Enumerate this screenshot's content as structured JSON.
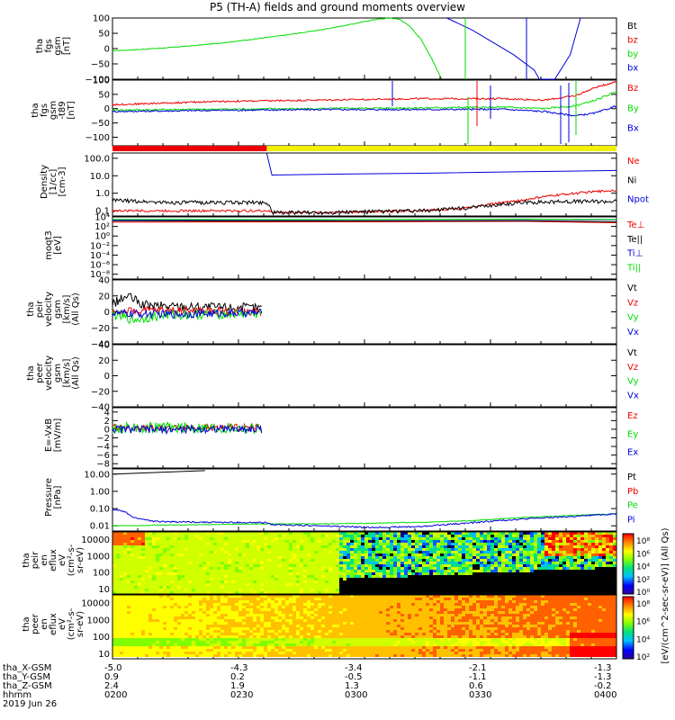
{
  "title": "P5 (TH-A) fields and ground moments overview",
  "colors": {
    "black": "#000000",
    "red": "#ee0000",
    "green": "#00dd00",
    "blue": "#0000dd",
    "yellow": "#f0f000"
  },
  "chart_data": [
    {
      "type": "line",
      "ylabel": [
        "tha",
        "fgs",
        "gsm",
        "[nT]"
      ],
      "ylim": [
        -100,
        100
      ],
      "yticks": [
        "100",
        "50",
        "0",
        "−50",
        "−100"
      ],
      "series": [
        {
          "name": "Bt",
          "color": "black",
          "x": [],
          "y": []
        },
        {
          "name": "bz",
          "color": "red",
          "x": [],
          "y": []
        },
        {
          "name": "by",
          "color": "green",
          "x": [
            -5.0,
            -4.8,
            -4.5,
            -4.2,
            -3.9,
            -3.6,
            -3.3,
            -3.0,
            -2.7,
            -2.45,
            -2.3,
            -2.2,
            -2.1,
            -2.0,
            -1.9,
            -1.8
          ],
          "y": [
            -7,
            -4,
            2,
            10,
            20,
            32,
            45,
            60,
            78,
            95,
            100,
            95,
            70,
            30,
            -30,
            -100
          ]
        },
        {
          "name": "bx",
          "color": "blue",
          "x": [
            -1.75,
            -1.5,
            -1.3,
            -1.1,
            -0.9,
            -0.85,
            -0.7,
            -0.55,
            -0.45
          ],
          "y": [
            100,
            60,
            20,
            -20,
            -70,
            -100,
            -100,
            -20,
            100
          ]
        }
      ]
    },
    {
      "type": "line",
      "ylabel": [
        "tha",
        "fgs",
        "gsm",
        "-t89",
        "[nT]"
      ],
      "ylim": [
        -130,
        100
      ],
      "yticks": [
        "100",
        "50",
        "0",
        "−50",
        "−100"
      ],
      "series": [
        {
          "name": "Bz",
          "color": "red",
          "x": [
            -5.0,
            -4.0,
            -3.0,
            -2.0,
            -1.2,
            -0.8,
            -0.5,
            -0.3,
            -0.1
          ],
          "y": [
            14,
            25,
            30,
            35,
            35,
            30,
            45,
            75,
            95
          ]
        },
        {
          "name": "By",
          "color": "green",
          "x": [
            -5.0,
            -4.0,
            -3.0,
            -2.0,
            -1.2,
            -0.8,
            -0.5,
            -0.3,
            -0.1
          ],
          "y": [
            -5,
            -2,
            0,
            3,
            5,
            0,
            10,
            30,
            60
          ]
        },
        {
          "name": "Bx",
          "color": "blue",
          "x": [
            -5.0,
            -4.0,
            -3.0,
            -2.0,
            -1.2,
            -0.8,
            -0.5,
            -0.3,
            -0.1
          ],
          "y": [
            -10,
            -6,
            -3,
            -3,
            -2,
            -10,
            -25,
            -15,
            10
          ]
        }
      ]
    },
    {
      "type": "line",
      "ylabel": [
        "Density",
        "[1/cc]",
        "[cm-3]"
      ],
      "ylim": [
        0.05,
        200
      ],
      "scale": "log",
      "yticks": [
        "100.0",
        "10.0",
        "1.0",
        "0.1"
      ],
      "series": [
        {
          "name": "Ne",
          "color": "red",
          "x": [
            -5.0,
            -4.0,
            -3.5,
            -3.45,
            -3.0,
            -2.0,
            -1.5,
            -1.0,
            -0.5,
            -0.1
          ],
          "y": [
            0.1,
            0.1,
            0.1,
            0.08,
            0.08,
            0.1,
            0.15,
            0.4,
            1.0,
            1.5
          ]
        },
        {
          "name": "Ni",
          "color": "black",
          "x": [
            -5.0,
            -4.5,
            -3.5,
            -3.45,
            -3.0,
            -2.0,
            -1.5,
            -1.0,
            -0.5,
            -0.1
          ],
          "y": [
            0.4,
            0.3,
            0.3,
            0.08,
            0.08,
            0.1,
            0.15,
            0.3,
            0.35,
            0.35
          ]
        },
        {
          "name": "Npot",
          "color": "blue",
          "x": [
            -3.5,
            -3.45,
            -3.0,
            -2.0,
            -1.0,
            -0.1
          ],
          "y": [
            190,
            11,
            12,
            14,
            17,
            20
          ]
        }
      ]
    },
    {
      "type": "line",
      "ylabel": [
        "moqt3",
        "[eV]"
      ],
      "ylim": [
        1e-09,
        10000.0
      ],
      "scale": "log",
      "yticks": [
        "10⁴",
        "10²",
        "10⁰",
        "10⁻²",
        "10⁻⁴",
        "10⁻⁶",
        "10⁻⁸"
      ],
      "series": [
        {
          "name": "Te⊥",
          "color": "red",
          "x": [
            -5.0,
            -3.0,
            -1.0,
            -0.1
          ],
          "y": [
            800,
            900,
            1200,
            600
          ]
        },
        {
          "name": "Te||",
          "color": "black",
          "x": [
            -5.0,
            -3.0,
            -1.0,
            -0.1
          ],
          "y": [
            1500,
            1400,
            1600,
            900
          ]
        },
        {
          "name": "Ti⊥",
          "color": "blue",
          "x": [
            -5.0,
            -3.0,
            -1.0,
            -0.1
          ],
          "y": [
            2000,
            2500,
            3000,
            2500
          ]
        },
        {
          "name": "Ti||",
          "color": "green",
          "x": [
            -5.0,
            -3.0,
            -1.0,
            -0.1
          ],
          "y": [
            3000,
            2800,
            3500,
            2800
          ]
        }
      ]
    },
    {
      "type": "line",
      "ylabel": [
        "tha",
        "peir",
        "velocity",
        "gsm",
        "[km/s]",
        "(All Qs)"
      ],
      "ylim": [
        -40,
        40
      ],
      "yticks": [
        "40",
        "20",
        "0",
        "−20",
        "−40"
      ],
      "series": [
        {
          "name": "Vt",
          "color": "black",
          "x": [
            -5.0,
            -4.85,
            -4.7,
            -4.0,
            -3.55
          ],
          "y": [
            10,
            20,
            8,
            6,
            5
          ]
        },
        {
          "name": "Vz",
          "color": "red",
          "x": [
            -5.0,
            -4.5,
            -4.0,
            -3.55
          ],
          "y": [
            0,
            2,
            1,
            0
          ]
        },
        {
          "name": "Vy",
          "color": "green",
          "x": [
            -5.0,
            -4.8,
            -4.5,
            -4.0,
            -3.55
          ],
          "y": [
            -3,
            -10,
            -4,
            -3,
            -2
          ]
        },
        {
          "name": "Vx",
          "color": "blue",
          "x": [
            -5.0,
            -4.5,
            -4.0,
            -3.55
          ],
          "y": [
            -2,
            -3,
            -2,
            -1
          ]
        }
      ]
    },
    {
      "type": "line",
      "ylabel": [
        "tha",
        "peer",
        "velocity",
        "gsm",
        "[km/s]",
        "(All Qs)"
      ],
      "ylim": [
        -40,
        40
      ],
      "yticks": [
        "40",
        "20",
        "0",
        "−20",
        "−40"
      ],
      "series": [
        {
          "name": "Vt",
          "color": "black",
          "x": [],
          "y": []
        },
        {
          "name": "Vz",
          "color": "red",
          "x": [],
          "y": []
        },
        {
          "name": "Vy",
          "color": "green",
          "x": [],
          "y": []
        },
        {
          "name": "Vx",
          "color": "blue",
          "x": [],
          "y": []
        }
      ]
    },
    {
      "type": "line",
      "ylabel": [
        "E=-VxB",
        "[mV/m]"
      ],
      "ylim": [
        -9,
        5
      ],
      "yticks": [
        "4",
        "2",
        "0",
        "−2",
        "−4",
        "−6",
        "−8"
      ],
      "series": [
        {
          "name": "Ez",
          "color": "red",
          "x": [
            -5.0,
            -4.5,
            -4.0,
            -3.55
          ],
          "y": [
            0.5,
            0.3,
            0.4,
            0.5
          ]
        },
        {
          "name": "Ey",
          "color": "green",
          "x": [
            -5.0,
            -4.5,
            -4.0,
            -3.55
          ],
          "y": [
            0.2,
            0.4,
            0.3,
            0.2
          ]
        },
        {
          "name": "Ex",
          "color": "blue",
          "x": [
            -5.0,
            -4.5,
            -4.0,
            -3.55
          ],
          "y": [
            0.0,
            -0.1,
            0.1,
            0.0
          ]
        }
      ]
    },
    {
      "type": "line",
      "ylabel": [
        "Pressure",
        "[nPa]"
      ],
      "ylim": [
        0.005,
        20
      ],
      "scale": "log",
      "yticks": [
        "10.00",
        "1.00",
        "0.10",
        "0.01"
      ],
      "series": [
        {
          "name": "Pt",
          "color": "black",
          "x": [
            -5.0,
            -4.5,
            -4.1
          ],
          "y": [
            10,
            13,
            16
          ]
        },
        {
          "name": "Pb",
          "color": "red",
          "x": [],
          "y": []
        },
        {
          "name": "Pe",
          "color": "green",
          "x": [
            -5.0,
            -4.0,
            -3.5,
            -3.0,
            -2.5,
            -2.0,
            -1.5,
            -1.0,
            -0.5,
            -0.1
          ],
          "y": [
            0.01,
            0.012,
            0.013,
            0.013,
            0.014,
            0.016,
            0.02,
            0.03,
            0.04,
            0.05
          ]
        },
        {
          "name": "Pi",
          "color": "blue",
          "x": [
            -5.0,
            -4.9,
            -4.8,
            -4.6,
            -4.4,
            -4.0,
            -3.5,
            -3.45,
            -3.0,
            -2.5,
            -2.0,
            -1.5,
            -1.0,
            -0.5,
            -0.1
          ],
          "y": [
            0.09,
            0.07,
            0.03,
            0.018,
            0.017,
            0.016,
            0.015,
            0.012,
            0.01,
            0.008,
            0.009,
            0.015,
            0.025,
            0.035,
            0.05
          ]
        }
      ]
    },
    {
      "type": "heatmap",
      "ylabel": [
        "tha",
        "peir",
        "en",
        "eflux",
        "eV",
        "(cm²-s-",
        "sr-eV)"
      ],
      "ylim": [
        5,
        30000
      ],
      "scale": "log",
      "yticks": [
        "10000",
        "1000",
        "100",
        "10"
      ],
      "colorbar": [
        "10⁸",
        "10⁶",
        "10⁴",
        "10²",
        "10⁰"
      ]
    },
    {
      "type": "heatmap",
      "ylabel": [
        "tha",
        "peer",
        "en",
        "eflux",
        "eV",
        "(cm²-s-",
        "sr-eV)"
      ],
      "ylim": [
        5,
        30000
      ],
      "scale": "log",
      "yticks": [
        "10000",
        "1000",
        "100",
        "10"
      ],
      "colorbar": [
        "10⁸",
        "10⁶",
        "10⁴",
        "10²"
      ]
    }
  ],
  "colorbar_title": "[eV/(cm^2-sec-sr-eV)] (All Qs)",
  "orbit_labels": [
    "tha_X-GSM",
    "tha_Y-GSM",
    "tha_Z-GSM",
    "hhmm",
    "2019 Jun 26"
  ],
  "orbit_columns": [
    {
      "x": "-5.0",
      "y": "0.9",
      "z": "2.4",
      "t": "0200"
    },
    {
      "x": "-4.3",
      "y": "0.2",
      "z": "1.9",
      "t": "0230"
    },
    {
      "x": "-3.4",
      "y": "-0.5",
      "z": "1.3",
      "t": "0300"
    },
    {
      "x": "-2.1",
      "y": "-1.1",
      "z": "0.6",
      "t": "0330"
    },
    {
      "x": "-1.3",
      "y": "-1.3",
      "z": "-0.2",
      "t": "0400"
    }
  ],
  "orbit_column_edges": [
    "-0.1",
    "-1.3",
    "-0.2"
  ]
}
